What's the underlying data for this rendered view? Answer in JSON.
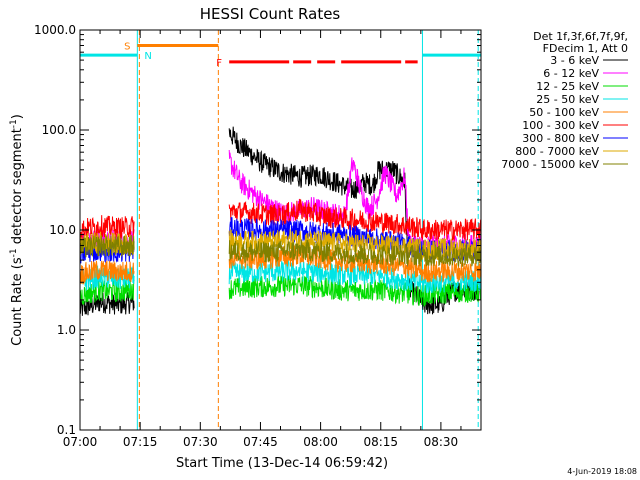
{
  "chart_data": {
    "type": "line",
    "title": "HESSI Count Rates",
    "xlabel": "Start Time (13-Dec-14 06:59:42)",
    "ylabel_main": "Count Rate (s",
    "ylabel_sup1": "-1",
    "ylabel_mid": " detector segment",
    "ylabel_sup2": "-1",
    "ylabel_end": ")",
    "y_scale": "log",
    "ylim": [
      0.1,
      1000
    ],
    "xlim_minutes": [
      0,
      100
    ],
    "x_ticks": [
      {
        "label": "07:00",
        "min": 0
      },
      {
        "label": "07:15",
        "min": 15
      },
      {
        "label": "07:30",
        "min": 30
      },
      {
        "label": "07:45",
        "min": 45
      },
      {
        "label": "08:00",
        "min": 60
      },
      {
        "label": "08:15",
        "min": 75
      },
      {
        "label": "08:30",
        "min": 90
      }
    ],
    "y_ticks": [
      {
        "label": "0.1",
        "value": 0.1
      },
      {
        "label": "1.0",
        "value": 1
      },
      {
        "label": "10.0",
        "value": 10
      },
      {
        "label": "100.0",
        "value": 100
      },
      {
        "label": "1000.0",
        "value": 1000
      }
    ],
    "legend_header": [
      "Det 1f,3f,6f,7f,9f,",
      "FDecim 1, Att 0"
    ],
    "legend_position": "outside-right",
    "series": [
      {
        "name": "3 - 6 keV",
        "color": "#000000",
        "points": [
          [
            0,
            1.6
          ],
          [
            5,
            1.9
          ],
          [
            10,
            1.8
          ],
          [
            13.5,
            1.9
          ],
          [
            37.2,
            95
          ],
          [
            40,
            70
          ],
          [
            45,
            48
          ],
          [
            50,
            38
          ],
          [
            55,
            34
          ],
          [
            60,
            36
          ],
          [
            63,
            31
          ],
          [
            68,
            25
          ],
          [
            71,
            30
          ],
          [
            73,
            28
          ],
          [
            74.5,
            40
          ],
          [
            78,
            40
          ],
          [
            81,
            30
          ],
          [
            82,
            2.6
          ],
          [
            86,
            1.8
          ],
          [
            90,
            1.8
          ],
          [
            93,
            2.5
          ],
          [
            100,
            2.5
          ]
        ]
      },
      {
        "name": "6 - 12 keV",
        "color": "#ff00ff",
        "points": [
          [
            0,
            7.5
          ],
          [
            5,
            8.2
          ],
          [
            10,
            7.8
          ],
          [
            13.5,
            8
          ],
          [
            37.2,
            50
          ],
          [
            40,
            30
          ],
          [
            45,
            20
          ],
          [
            50,
            15
          ],
          [
            53,
            15
          ],
          [
            58,
            17
          ],
          [
            62,
            15
          ],
          [
            66,
            14
          ],
          [
            68,
            48
          ],
          [
            70,
            25
          ],
          [
            72,
            16
          ],
          [
            74,
            20
          ],
          [
            76,
            38
          ],
          [
            79,
            22
          ],
          [
            81,
            35
          ],
          [
            82,
            7.5
          ],
          [
            86,
            7
          ],
          [
            90,
            7
          ],
          [
            93,
            7.2
          ],
          [
            100,
            7
          ]
        ]
      },
      {
        "name": "12 - 25 keV",
        "color": "#00dd00",
        "points": [
          [
            0,
            2.2
          ],
          [
            5,
            2.5
          ],
          [
            10,
            2.4
          ],
          [
            13.5,
            2.6
          ],
          [
            37.2,
            2.6
          ],
          [
            45,
            2.7
          ],
          [
            55,
            2.8
          ],
          [
            65,
            2.5
          ],
          [
            75,
            2.5
          ],
          [
            82,
            2.3
          ],
          [
            86,
            2.2
          ],
          [
            93,
            2.4
          ],
          [
            100,
            2.4
          ]
        ]
      },
      {
        "name": "25 - 50 keV",
        "color": "#00e5e5",
        "points": [
          [
            0,
            3
          ],
          [
            5,
            3.4
          ],
          [
            10,
            3.2
          ],
          [
            13.5,
            3.3
          ],
          [
            37.2,
            3.7
          ],
          [
            45,
            3.8
          ],
          [
            55,
            3.9
          ],
          [
            65,
            3.6
          ],
          [
            75,
            3.5
          ],
          [
            82,
            3.1
          ],
          [
            86,
            2.9
          ],
          [
            93,
            3.1
          ],
          [
            100,
            3.1
          ]
        ]
      },
      {
        "name": "50 - 100 keV",
        "color": "#ff7f00",
        "points": [
          [
            0,
            3.6
          ],
          [
            5,
            4
          ],
          [
            10,
            3.8
          ],
          [
            13.5,
            3.9
          ],
          [
            37.2,
            5.2
          ],
          [
            45,
            5.1
          ],
          [
            55,
            5.6
          ],
          [
            65,
            4.8
          ],
          [
            75,
            4.6
          ],
          [
            82,
            4.2
          ],
          [
            86,
            3.8
          ],
          [
            93,
            3.9
          ],
          [
            100,
            3.9
          ]
        ]
      },
      {
        "name": "100 - 300 keV",
        "color": "#ff0000",
        "points": [
          [
            0,
            10
          ],
          [
            5,
            11
          ],
          [
            10,
            10.5
          ],
          [
            13.5,
            11
          ],
          [
            37.2,
            15.5
          ],
          [
            45,
            14.5
          ],
          [
            50,
            14
          ],
          [
            55,
            16
          ],
          [
            60,
            14
          ],
          [
            65,
            13
          ],
          [
            75,
            12
          ],
          [
            82,
            11
          ],
          [
            86,
            10
          ],
          [
            93,
            10
          ],
          [
            100,
            10.2
          ]
        ]
      },
      {
        "name": "300 - 800 keV",
        "color": "#0000ff",
        "points": [
          [
            0,
            5.8
          ],
          [
            5,
            6.3
          ],
          [
            10,
            6
          ],
          [
            13.5,
            6.2
          ],
          [
            37.2,
            10.5
          ],
          [
            45,
            10
          ],
          [
            55,
            9.8
          ],
          [
            65,
            9
          ],
          [
            75,
            8
          ],
          [
            82,
            7
          ],
          [
            86,
            6.3
          ],
          [
            93,
            6.2
          ],
          [
            100,
            6.3
          ]
        ]
      },
      {
        "name": "800 - 7000 keV",
        "color": "#ddaa00",
        "points": [
          [
            0,
            7
          ],
          [
            5,
            7.6
          ],
          [
            10,
            7.2
          ],
          [
            13.5,
            7.4
          ],
          [
            37.2,
            7.8
          ],
          [
            45,
            7.6
          ],
          [
            55,
            8
          ],
          [
            65,
            7.3
          ],
          [
            75,
            7
          ],
          [
            82,
            6.7
          ],
          [
            86,
            6.4
          ],
          [
            93,
            6.5
          ],
          [
            100,
            6.5
          ]
        ]
      },
      {
        "name": "7000 - 15000 keV",
        "color": "#808000",
        "points": [
          [
            0,
            6.5
          ],
          [
            5,
            7
          ],
          [
            10,
            6.8
          ],
          [
            13.5,
            7
          ],
          [
            37.2,
            6.2
          ],
          [
            45,
            6
          ],
          [
            55,
            6.3
          ],
          [
            65,
            5.9
          ],
          [
            75,
            5.7
          ],
          [
            82,
            5.7
          ],
          [
            86,
            5.5
          ],
          [
            93,
            5.5
          ],
          [
            100,
            5.6
          ]
        ]
      }
    ],
    "attenuator_bars": [
      {
        "label": "S",
        "color": "#ff7f00",
        "x0": 14.3,
        "x1": 34.5,
        "value": 700,
        "dash": false
      },
      {
        "label": "F",
        "color": "#ff0000",
        "x0": 37.2,
        "x1": 84.2,
        "value": 480,
        "dash": true
      }
    ],
    "night_bars": [
      {
        "color": "#00e5e5",
        "x0": 0,
        "x1": 14.3,
        "value": 560
      },
      {
        "color": "#00e5e5",
        "x0": 85.4,
        "x1": 100,
        "value": 560
      }
    ],
    "night_label": "N",
    "vertical_lines": [
      {
        "min": 0,
        "color": "#00e5e5",
        "dash": false
      },
      {
        "min": 14.3,
        "color": "#00e5e5",
        "dash": false
      },
      {
        "min": 14.8,
        "color": "#ff7f00",
        "dash": true
      },
      {
        "min": 34.5,
        "color": "#ff7f00",
        "dash": true
      },
      {
        "min": 85.4,
        "color": "#00e5e5",
        "dash": false
      },
      {
        "min": 99.3,
        "color": "#00e5e5",
        "dash": true
      }
    ],
    "data_gap_minutes": [
      14.3,
      37.2
    ]
  },
  "footer": {
    "date": "4-Jun-2019 18:08"
  }
}
